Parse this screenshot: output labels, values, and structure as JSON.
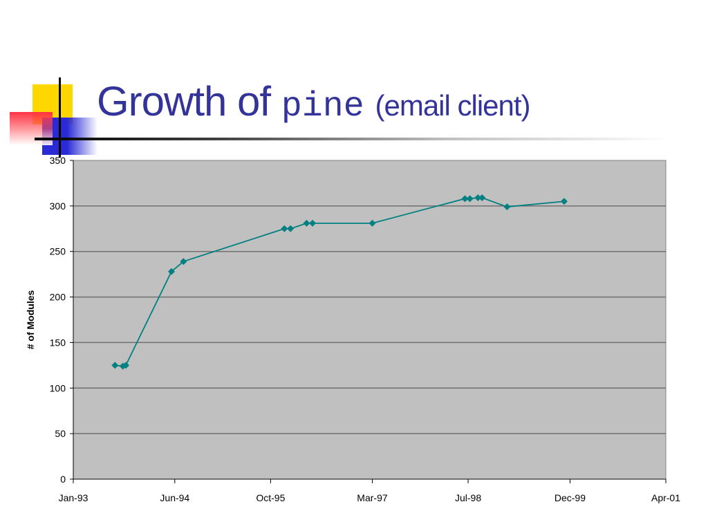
{
  "slide": {
    "title_main": "Growth of",
    "title_code": "pine",
    "title_suffix": "(email client)"
  },
  "chart_data": {
    "type": "line",
    "ylabel": "# of Modules",
    "xlabel": "",
    "ylim": [
      0,
      350
    ],
    "y_ticks": [
      0,
      50,
      100,
      150,
      200,
      250,
      300,
      350
    ],
    "x_ticks": [
      "1993-01-01",
      "1994-06-01",
      "1995-10-01",
      "1997-03-01",
      "1998-07-01",
      "1999-12-01",
      "2001-04-01"
    ],
    "x_tick_labels": [
      "Jan-93",
      "Jun-94",
      "Oct-95",
      "Mar-97",
      "Jul-98",
      "Dec-99",
      "Apr-01"
    ],
    "grid": "horizontal",
    "plot_background": "#c0c0c0",
    "series": [
      {
        "color": "#008080",
        "marker": "diamond",
        "x": [
          "1993-08-01",
          "1993-09-10",
          "1993-09-25",
          "1994-05-15",
          "1994-07-15",
          "1995-12-10",
          "1996-01-10",
          "1996-04-01",
          "1996-05-01",
          "1997-03-01",
          "1998-06-15",
          "1998-07-10",
          "1998-08-20",
          "1998-09-10",
          "1999-01-15",
          "1999-11-01"
        ],
        "y": [
          125,
          124,
          125,
          228,
          239,
          275,
          275,
          281,
          281,
          281,
          308,
          308,
          309,
          309,
          299,
          305
        ]
      }
    ]
  }
}
